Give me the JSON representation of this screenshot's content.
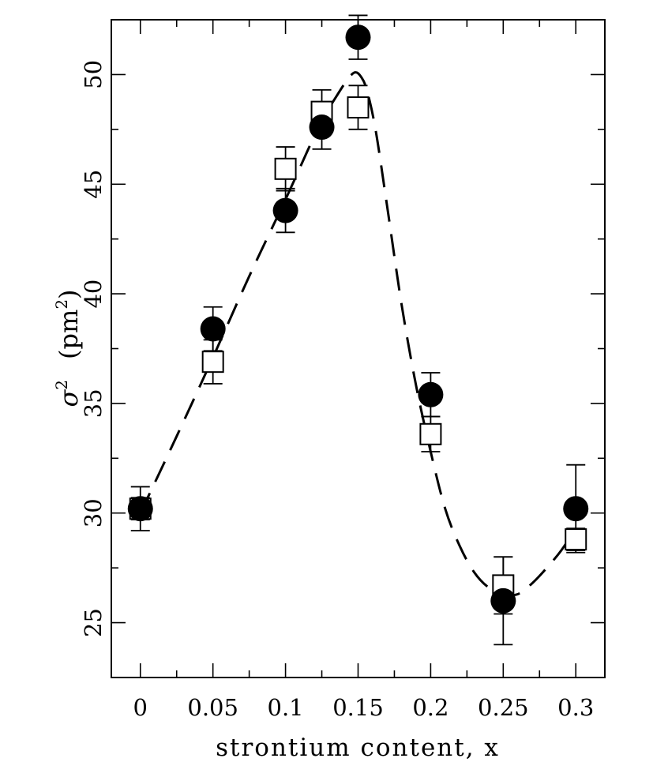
{
  "chart_data": {
    "type": "scatter",
    "title": "",
    "xlabel": "strontium content, x",
    "ylabel": {
      "symbol": "σ",
      "exp": "2",
      "unit_open": "(pm",
      "unit_exp": "2",
      "unit_close": ")"
    },
    "xlim": [
      -0.02,
      0.32
    ],
    "ylim": [
      22.5,
      52.5
    ],
    "x_ticks": [
      {
        "value": 0,
        "label": "0"
      },
      {
        "value": 0.05,
        "label": "0.05"
      },
      {
        "value": 0.1,
        "label": "0.1"
      },
      {
        "value": 0.15,
        "label": "0.15"
      },
      {
        "value": 0.2,
        "label": "0.2"
      },
      {
        "value": 0.25,
        "label": "0.25"
      },
      {
        "value": 0.3,
        "label": "0.3"
      }
    ],
    "x_minor_step": 0.025,
    "y_ticks": [
      {
        "value": 25,
        "label": "25"
      },
      {
        "value": 30,
        "label": "30"
      },
      {
        "value": 35,
        "label": "35"
      },
      {
        "value": 40,
        "label": "40"
      },
      {
        "value": 45,
        "label": "45"
      },
      {
        "value": 50,
        "label": "50"
      }
    ],
    "y_minor_step": 2.5,
    "grid": false,
    "series": [
      {
        "marker": "filled-circle",
        "color": "#000000",
        "points": [
          {
            "x": 0,
            "y": 30.2,
            "err": 1.0
          },
          {
            "x": 0.05,
            "y": 38.4,
            "err": 1.0
          },
          {
            "x": 0.1,
            "y": 43.8,
            "err": 1.0
          },
          {
            "x": 0.125,
            "y": 47.6,
            "err": 1.0
          },
          {
            "x": 0.15,
            "y": 51.7,
            "err": 1.0
          },
          {
            "x": 0.2,
            "y": 35.4,
            "err": 1.0
          },
          {
            "x": 0.25,
            "y": 26.0,
            "err": 2.0
          },
          {
            "x": 0.3,
            "y": 30.2,
            "err": 2.0
          }
        ]
      },
      {
        "marker": "open-square",
        "color": "#000000",
        "points": [
          {
            "x": 0,
            "y": 30.2,
            "err": 0.5
          },
          {
            "x": 0.05,
            "y": 36.9,
            "err": 1.0
          },
          {
            "x": 0.1,
            "y": 45.7,
            "err": 1.0
          },
          {
            "x": 0.125,
            "y": 48.3,
            "err": 1.0
          },
          {
            "x": 0.15,
            "y": 48.5,
            "err": 1.0
          },
          {
            "x": 0.2,
            "y": 33.6,
            "err": 0.8
          },
          {
            "x": 0.25,
            "y": 26.7,
            "err": 1.3
          },
          {
            "x": 0.3,
            "y": 28.8,
            "err": 0.5
          }
        ]
      }
    ],
    "guide_curve": {
      "style": "dashed",
      "color": "#000000",
      "x": [
        0.0,
        0.025,
        0.05,
        0.075,
        0.1,
        0.115,
        0.125,
        0.135,
        0.143,
        0.148,
        0.152,
        0.156,
        0.162,
        0.17,
        0.18,
        0.19,
        0.2,
        0.21,
        0.22,
        0.23,
        0.24,
        0.25,
        0.26,
        0.27,
        0.28,
        0.29,
        0.3
      ],
      "y": [
        30.0,
        33.5,
        37.1,
        40.8,
        44.3,
        46.5,
        47.9,
        49.0,
        49.8,
        50.1,
        49.9,
        49.3,
        47.5,
        44.0,
        39.5,
        35.8,
        32.8,
        30.2,
        28.5,
        27.3,
        26.6,
        26.3,
        26.3,
        26.8,
        27.5,
        28.3,
        29.3
      ]
    }
  }
}
